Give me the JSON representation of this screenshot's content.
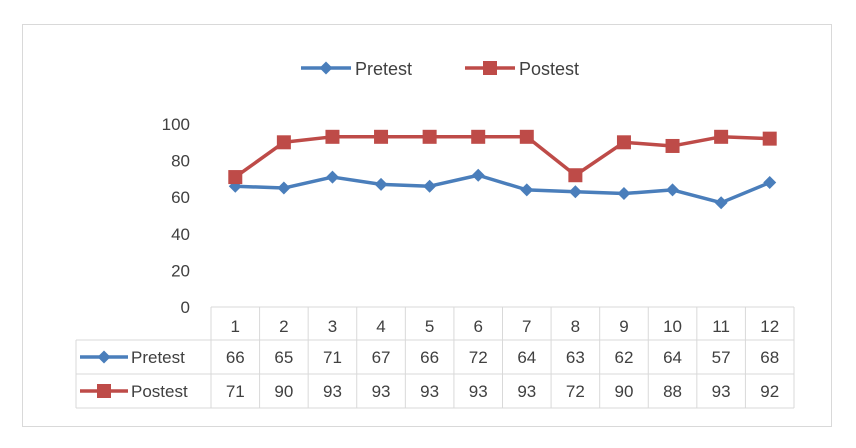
{
  "chart_data": {
    "type": "line",
    "title": "",
    "xlabel": "",
    "ylabel": "",
    "categories": [
      "1",
      "2",
      "3",
      "4",
      "5",
      "6",
      "7",
      "8",
      "9",
      "10",
      "11",
      "12"
    ],
    "ylim": [
      0,
      100
    ],
    "yticks": [
      0,
      20,
      40,
      60,
      80,
      100
    ],
    "grid": false,
    "legend_position": "top",
    "data_table": true,
    "series": [
      {
        "name": "Pretest",
        "color": "#4a7ebb",
        "marker": "diamond",
        "values": [
          66,
          65,
          71,
          67,
          66,
          72,
          64,
          63,
          62,
          64,
          57,
          68
        ]
      },
      {
        "name": "Postest",
        "color": "#be4b48",
        "marker": "square",
        "values": [
          71,
          90,
          93,
          93,
          93,
          93,
          93,
          72,
          90,
          88,
          93,
          92
        ]
      }
    ]
  }
}
